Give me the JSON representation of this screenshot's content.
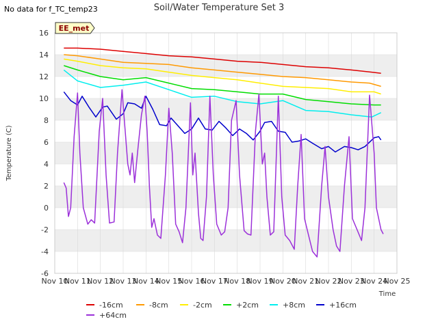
{
  "no_data_note": "No data for f_TC_temp23",
  "badge": "EE_met",
  "colors": {
    "band": "#eeeeee",
    "grid": "#d9d9d9",
    "badge_bg": "#ffffc8",
    "badge_text": "#8b0000"
  },
  "chart_data": {
    "type": "line",
    "title": "Soil/Water Temperature Set 3",
    "xlabel": "Time",
    "ylabel": "Temperature (C)",
    "xlim": [
      10,
      25
    ],
    "ylim": [
      -6,
      16
    ],
    "x_ticks": [
      10,
      11,
      12,
      13,
      14,
      15,
      16,
      17,
      18,
      19,
      20,
      21,
      22,
      23,
      24,
      25
    ],
    "x_tick_labels": [
      "Nov 10",
      "Nov 11",
      "Nov 12",
      "Nov 13",
      "Nov 14",
      "Nov 15",
      "Nov 16",
      "Nov 17",
      "Nov 18",
      "Nov 19",
      "Nov 20",
      "Nov 21",
      "Nov 22",
      "Nov 23",
      "Nov 24",
      "Nov 25"
    ],
    "y_ticks": [
      -6,
      -4,
      -2,
      0,
      2,
      4,
      6,
      8,
      10,
      12,
      14,
      16
    ],
    "y_tick_labels": [
      "-6",
      "-4",
      "-2",
      "0",
      "2",
      "4",
      "6",
      "8",
      "10",
      "12",
      "14",
      "16"
    ],
    "grid": true,
    "legend_position": "bottom",
    "series": [
      {
        "name": "-16cm",
        "color": "#dd0000",
        "x": [
          10.4,
          11,
          12,
          13,
          14,
          15,
          16,
          17,
          18,
          19,
          20,
          21,
          22,
          23,
          23.9,
          24.3
        ],
        "y": [
          14.6,
          14.6,
          14.5,
          14.3,
          14.1,
          13.9,
          13.8,
          13.6,
          13.4,
          13.3,
          13.1,
          12.9,
          12.8,
          12.6,
          12.4,
          12.3
        ]
      },
      {
        "name": "-8cm",
        "color": "#ff9900",
        "x": [
          10.4,
          11,
          12,
          13,
          14,
          15,
          16,
          17,
          18,
          19,
          20,
          21,
          22,
          23,
          23.8,
          24.3
        ],
        "y": [
          14.0,
          13.9,
          13.6,
          13.3,
          13.2,
          13.1,
          12.8,
          12.6,
          12.4,
          12.2,
          12.0,
          11.9,
          11.7,
          11.5,
          11.4,
          11.1
        ]
      },
      {
        "name": "-2cm",
        "color": "#ffee00",
        "x": [
          10.4,
          11,
          12,
          13,
          14,
          15,
          16,
          17,
          18,
          19,
          20,
          21,
          22,
          23,
          24,
          24.3
        ],
        "y": [
          13.6,
          13.4,
          13.0,
          12.8,
          12.7,
          12.4,
          12.1,
          11.9,
          11.7,
          11.4,
          11.1,
          11.0,
          10.9,
          10.6,
          10.6,
          10.4
        ]
      },
      {
        "name": "+2cm",
        "color": "#00dd00",
        "x": [
          10.4,
          11,
          12,
          13,
          14,
          15,
          16,
          17,
          18,
          19,
          20,
          21,
          22,
          23,
          24,
          24.3
        ],
        "y": [
          13.0,
          12.6,
          12.0,
          11.7,
          11.9,
          11.4,
          10.9,
          10.8,
          10.6,
          10.4,
          10.4,
          9.9,
          9.7,
          9.5,
          9.4,
          9.4
        ]
      },
      {
        "name": "+8cm",
        "color": "#00eeee",
        "x": [
          10.4,
          11,
          12,
          13,
          14,
          15,
          16,
          17,
          18,
          19,
          20,
          21,
          22,
          23,
          23.9,
          24.3
        ],
        "y": [
          12.6,
          11.6,
          11.0,
          11.2,
          11.5,
          10.8,
          10.1,
          10.2,
          9.7,
          9.5,
          9.8,
          8.9,
          8.8,
          8.5,
          8.3,
          8.7
        ]
      },
      {
        "name": "+16cm",
        "color": "#0000cc",
        "x": [
          10.4,
          10.7,
          11.0,
          11.2,
          11.5,
          11.8,
          12.1,
          12.3,
          12.7,
          13.0,
          13.2,
          13.5,
          13.8,
          14.0,
          14.3,
          14.6,
          14.9,
          15.1,
          15.4,
          15.7,
          16.0,
          16.3,
          16.6,
          16.9,
          17.2,
          17.5,
          17.8,
          18.1,
          18.4,
          18.7,
          19.0,
          19.2,
          19.5,
          19.8,
          20.1,
          20.4,
          20.7,
          21.0,
          21.3,
          21.7,
          22.0,
          22.3,
          22.7,
          23.0,
          23.3,
          23.6,
          24.0,
          24.2,
          24.3
        ],
        "y": [
          10.6,
          9.8,
          9.4,
          10.2,
          9.2,
          8.3,
          9.2,
          9.3,
          8.1,
          8.6,
          9.6,
          9.5,
          9.1,
          10.2,
          9.0,
          7.6,
          7.5,
          8.2,
          7.5,
          6.8,
          7.2,
          8.2,
          7.2,
          7.1,
          7.9,
          7.3,
          6.6,
          7.2,
          6.8,
          6.2,
          7.0,
          7.8,
          7.9,
          7.0,
          6.9,
          6.0,
          6.1,
          6.3,
          5.9,
          5.4,
          5.6,
          5.1,
          5.6,
          5.5,
          5.3,
          5.6,
          6.4,
          6.5,
          6.2
        ]
      },
      {
        "name": "+64cm",
        "color": "#9b30d9",
        "x": [
          10.4,
          10.5,
          10.6,
          10.7,
          10.85,
          11.0,
          11.1,
          11.25,
          11.45,
          11.6,
          11.75,
          11.95,
          12.1,
          12.25,
          12.4,
          12.6,
          12.75,
          12.95,
          13.05,
          13.2,
          13.3,
          13.4,
          13.5,
          13.65,
          13.8,
          13.95,
          14.05,
          14.15,
          14.25,
          14.35,
          14.5,
          14.65,
          14.85,
          15.0,
          15.15,
          15.3,
          15.45,
          15.6,
          15.75,
          15.95,
          16.05,
          16.15,
          16.3,
          16.4,
          16.5,
          16.65,
          16.8,
          16.95,
          17.1,
          17.3,
          17.45,
          17.6,
          17.75,
          17.95,
          18.1,
          18.3,
          18.45,
          18.6,
          18.8,
          18.95,
          19.1,
          19.2,
          19.3,
          19.45,
          19.6,
          19.8,
          19.95,
          20.1,
          20.3,
          20.5,
          20.65,
          20.8,
          20.95,
          21.1,
          21.3,
          21.5,
          21.7,
          21.85,
          22.0,
          22.2,
          22.35,
          22.5,
          22.7,
          22.9,
          23.05,
          23.25,
          23.45,
          23.6,
          23.8,
          24.0,
          24.1,
          24.3,
          24.4
        ],
        "y": [
          2.3,
          1.8,
          -0.8,
          0.0,
          6.5,
          10.5,
          5.0,
          0.0,
          -1.5,
          -1.1,
          -1.4,
          7.0,
          10.0,
          3.0,
          -1.4,
          -1.3,
          5.0,
          10.8,
          8.0,
          4.0,
          3.0,
          5.0,
          2.3,
          5.5,
          8.5,
          10.2,
          7.0,
          2.0,
          -1.8,
          -1.0,
          -2.5,
          -2.8,
          3.0,
          9.1,
          5.0,
          -1.5,
          -2.2,
          -3.2,
          0.0,
          9.6,
          3.0,
          5.0,
          -0.5,
          -2.8,
          -3.0,
          1.0,
          10.2,
          3.0,
          -1.5,
          -2.5,
          -2.2,
          0.0,
          8.0,
          9.8,
          3.0,
          -2.1,
          -2.4,
          -2.5,
          7.0,
          10.4,
          4.0,
          5.0,
          1.0,
          -2.5,
          -2.2,
          10.2,
          1.0,
          -2.5,
          -3.0,
          -3.8,
          2.0,
          6.7,
          -1.0,
          -2.3,
          -4.0,
          -4.5,
          2.0,
          5.6,
          1.0,
          -2.0,
          -3.5,
          -4.0,
          2.0,
          6.5,
          -1.0,
          -2.0,
          -3.0,
          0.0,
          10.3,
          5.0,
          0.0,
          -2.0,
          -2.4
        ]
      }
    ]
  }
}
